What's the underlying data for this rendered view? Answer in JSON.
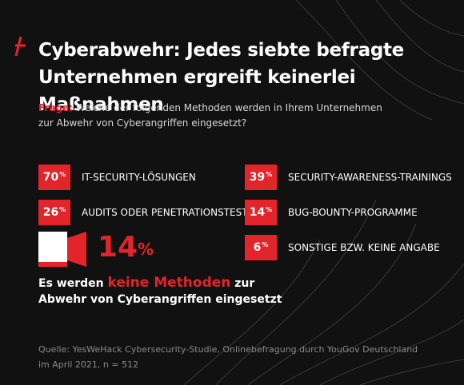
{
  "header": {
    "title_line1": "Cyberabwehr: Jedes siebte befragte",
    "title_line2": "Unternehmen ergreift keinerlei Maßnahmen"
  },
  "question": {
    "label": "Frage:",
    "text_line1": "Welche der folgenden Methoden werden in Ihrem Unternehmen",
    "text_line2": "zur Abwehr von Cyberangriffen eingesetzt?"
  },
  "highlight": {
    "value_text": "14",
    "percent_sign": "%",
    "text_before": "Es werden ",
    "text_emphasis": "keine Methoden",
    "text_after": " zur",
    "text_line2": "Abwehr von Cyberangriffen eingesetzt"
  },
  "source": {
    "line1": "Quelle: YesWeHack Cybersecurity-Studie, Onlinebefragung durch YouGov Deutschland",
    "line2": "im April 2021, n = 512"
  },
  "colors": {
    "accent": "#e3242b",
    "background": "#111111",
    "text": "#ffffff",
    "muted": "#8a8a8a"
  },
  "chart_data": {
    "type": "bar",
    "unit": "%",
    "categories": [
      "IT-SECURITY-LÖSUNGEN",
      "SECURITY-AWARENESS-TRAININGS",
      "AUDITS ODER PENETRATIONSTESTS",
      "BUG-BOUNTY-PROGRAMME",
      "SONSTIGE BZW. KEINE ANGABE",
      "keine Methoden"
    ],
    "values": [
      70,
      39,
      26,
      14,
      6,
      14
    ],
    "value_labels": [
      "70",
      "39",
      "26",
      "14",
      "6",
      "14"
    ]
  }
}
